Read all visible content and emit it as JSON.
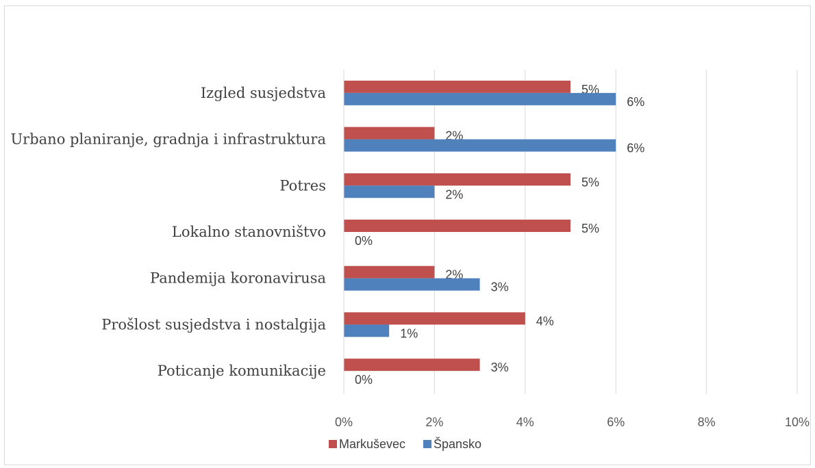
{
  "chart_data": {
    "type": "bar",
    "orientation": "horizontal",
    "categories": [
      "Izgled susjedstva",
      "Urbano planiranje, gradnja i infrastruktura",
      "Potres",
      "Lokalno stanovništvo",
      "Pandemija koronavirusa",
      "Prošlost susjedstva i nostalgija",
      "Poticanje komunikacije"
    ],
    "series": [
      {
        "name": "Markuševec",
        "color": "#c0504d",
        "values": [
          5,
          2,
          5,
          5,
          2,
          4,
          3
        ],
        "labels": [
          "5%",
          "2%",
          "5%",
          "5%",
          "2%",
          "4%",
          "3%"
        ]
      },
      {
        "name": "Špansko",
        "color": "#4f81bd",
        "values": [
          6,
          6,
          2,
          0,
          3,
          1,
          0
        ],
        "labels": [
          "6%",
          "6%",
          "2%",
          "0%",
          "3%",
          "1%",
          "0%"
        ]
      }
    ],
    "x_ticks": [
      "0%",
      "2%",
      "4%",
      "6%",
      "8%",
      "10%"
    ],
    "xlim": [
      0,
      10
    ],
    "grid": true,
    "legend_position": "bottom"
  }
}
